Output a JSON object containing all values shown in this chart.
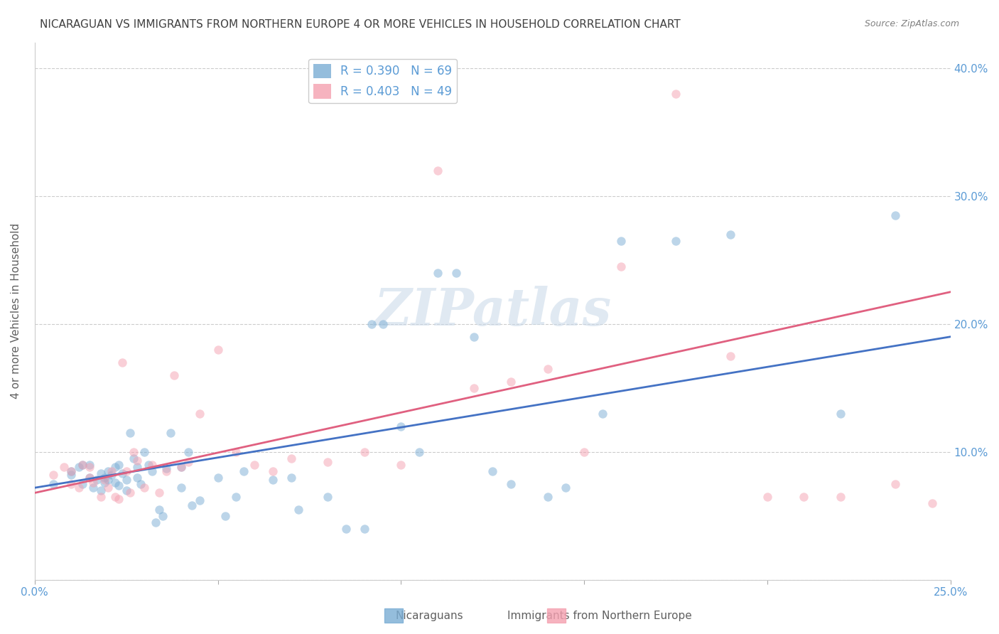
{
  "title": "NICARAGUAN VS IMMIGRANTS FROM NORTHERN EUROPE 4 OR MORE VEHICLES IN HOUSEHOLD CORRELATION CHART",
  "source": "Source: ZipAtlas.com",
  "xlabel_bottom": "",
  "ylabel": "4 or more Vehicles in Household",
  "xlim": [
    0.0,
    0.25
  ],
  "ylim": [
    0.0,
    0.42
  ],
  "xticks": [
    0.0,
    0.05,
    0.1,
    0.15,
    0.2,
    0.25
  ],
  "yticks": [
    0.0,
    0.1,
    0.2,
    0.3,
    0.4
  ],
  "xtick_labels": [
    "0.0%",
    "",
    "",
    "",
    "",
    "25.0%"
  ],
  "ytick_labels_left": [
    "",
    "",
    "",
    "",
    ""
  ],
  "ytick_labels_right": [
    "",
    "10.0%",
    "20.0%",
    "30.0%",
    "40.0%"
  ],
  "legend_blue_r": "R = 0.390",
  "legend_blue_n": "N = 69",
  "legend_pink_r": "R = 0.403",
  "legend_pink_n": "N = 49",
  "blue_scatter_x": [
    0.005,
    0.01,
    0.01,
    0.012,
    0.013,
    0.013,
    0.015,
    0.015,
    0.016,
    0.017,
    0.018,
    0.018,
    0.019,
    0.019,
    0.02,
    0.02,
    0.021,
    0.022,
    0.022,
    0.023,
    0.023,
    0.024,
    0.025,
    0.025,
    0.026,
    0.027,
    0.028,
    0.028,
    0.029,
    0.03,
    0.031,
    0.032,
    0.033,
    0.034,
    0.035,
    0.036,
    0.037,
    0.04,
    0.04,
    0.042,
    0.043,
    0.045,
    0.05,
    0.052,
    0.055,
    0.057,
    0.065,
    0.07,
    0.072,
    0.08,
    0.085,
    0.09,
    0.092,
    0.095,
    0.1,
    0.105,
    0.11,
    0.115,
    0.12,
    0.125,
    0.13,
    0.14,
    0.145,
    0.155,
    0.16,
    0.175,
    0.19,
    0.22,
    0.235
  ],
  "blue_scatter_y": [
    0.075,
    0.085,
    0.082,
    0.088,
    0.09,
    0.075,
    0.08,
    0.09,
    0.072,
    0.078,
    0.07,
    0.083,
    0.076,
    0.08,
    0.085,
    0.078,
    0.082,
    0.076,
    0.088,
    0.074,
    0.09,
    0.083,
    0.07,
    0.078,
    0.115,
    0.095,
    0.08,
    0.088,
    0.075,
    0.1,
    0.09,
    0.085,
    0.045,
    0.055,
    0.05,
    0.087,
    0.115,
    0.072,
    0.088,
    0.1,
    0.058,
    0.062,
    0.08,
    0.05,
    0.065,
    0.085,
    0.078,
    0.08,
    0.055,
    0.065,
    0.04,
    0.04,
    0.2,
    0.2,
    0.12,
    0.1,
    0.24,
    0.24,
    0.19,
    0.085,
    0.075,
    0.065,
    0.072,
    0.13,
    0.265,
    0.265,
    0.27,
    0.13,
    0.285
  ],
  "pink_scatter_x": [
    0.005,
    0.008,
    0.01,
    0.01,
    0.012,
    0.013,
    0.015,
    0.015,
    0.016,
    0.018,
    0.019,
    0.02,
    0.021,
    0.022,
    0.023,
    0.024,
    0.025,
    0.026,
    0.027,
    0.028,
    0.03,
    0.032,
    0.034,
    0.036,
    0.038,
    0.04,
    0.042,
    0.045,
    0.05,
    0.055,
    0.06,
    0.065,
    0.07,
    0.08,
    0.09,
    0.1,
    0.11,
    0.12,
    0.13,
    0.14,
    0.15,
    0.16,
    0.175,
    0.19,
    0.2,
    0.21,
    0.22,
    0.235,
    0.245
  ],
  "pink_scatter_y": [
    0.082,
    0.088,
    0.075,
    0.085,
    0.072,
    0.09,
    0.08,
    0.088,
    0.076,
    0.065,
    0.078,
    0.072,
    0.085,
    0.065,
    0.063,
    0.17,
    0.085,
    0.068,
    0.1,
    0.093,
    0.072,
    0.09,
    0.068,
    0.085,
    0.16,
    0.088,
    0.092,
    0.13,
    0.18,
    0.1,
    0.09,
    0.085,
    0.095,
    0.092,
    0.1,
    0.09,
    0.32,
    0.15,
    0.155,
    0.165,
    0.1,
    0.245,
    0.38,
    0.175,
    0.065,
    0.065,
    0.065,
    0.075,
    0.06
  ],
  "blue_line_x": [
    0.0,
    0.25
  ],
  "blue_line_y": [
    0.072,
    0.19
  ],
  "pink_line_x": [
    0.0,
    0.25
  ],
  "pink_line_y": [
    0.068,
    0.225
  ],
  "blue_color": "#7aadd4",
  "pink_color": "#f4a0b0",
  "blue_line_color": "#4472c4",
  "pink_line_color": "#e06080",
  "watermark": "ZIPatlas",
  "background_color": "#ffffff",
  "grid_color": "#cccccc",
  "tick_label_color": "#5b9bd5",
  "title_color": "#404040",
  "marker_size": 80,
  "marker_alpha": 0.5,
  "line_width": 2.0
}
